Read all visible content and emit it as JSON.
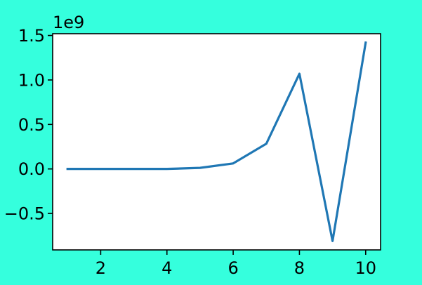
{
  "colors": {
    "background": "#35ffdd",
    "plot_area": "#ffffff",
    "line": "#1f77b4",
    "axis": "#000000"
  },
  "chart_data": {
    "type": "line",
    "title": "",
    "xlabel": "",
    "ylabel": "",
    "y_offset_label": "1e9",
    "x": [
      1,
      2,
      3,
      4,
      5,
      6,
      7,
      8,
      9,
      10
    ],
    "series": [
      {
        "values": [
          0,
          0,
          0,
          0,
          0.012,
          0.062,
          0.283,
          1.07,
          -0.81,
          1.42
        ]
      }
    ],
    "xlim": [
      0.55,
      10.45
    ],
    "ylim": [
      -0.91,
      1.52
    ],
    "x_ticks": [
      2,
      4,
      6,
      8,
      10
    ],
    "x_tick_labels": [
      "2",
      "4",
      "6",
      "8",
      "10"
    ],
    "y_ticks": [
      -0.5,
      0.0,
      0.5,
      1.0,
      1.5
    ],
    "y_tick_labels": [
      "−0.5",
      "0.0",
      "0.5",
      "1.0",
      "1.5"
    ],
    "grid": false,
    "legend": "none"
  }
}
